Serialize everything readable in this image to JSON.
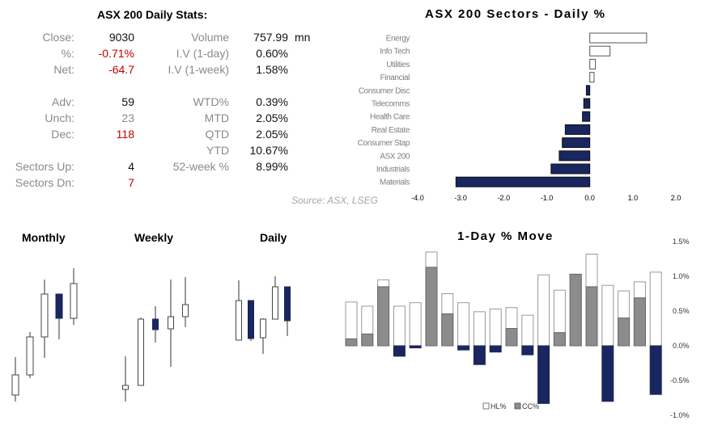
{
  "stats": {
    "title": "ASX 200 Daily Stats:",
    "left": [
      {
        "label": "Close:",
        "value": "9030",
        "color": "normal"
      },
      {
        "label": "%:",
        "value": "-0.71%",
        "color": "red"
      },
      {
        "label": "Net:",
        "value": "-64.7",
        "color": "red"
      },
      {
        "label": "Adv:",
        "value": "59",
        "color": "normal"
      },
      {
        "label": "Unch:",
        "value": "23",
        "color": "gray"
      },
      {
        "label": "Dec:",
        "value": "118",
        "color": "red"
      },
      {
        "label": "Sectors Up:",
        "value": "4",
        "color": "normal"
      },
      {
        "label": "Sectors Dn:",
        "value": "7",
        "color": "red"
      }
    ],
    "right": [
      {
        "label": "Volume",
        "value": "757.99",
        "unit": "mn"
      },
      {
        "label": "I.V (1-day)",
        "value": "0.60%"
      },
      {
        "label": "I.V (1-week)",
        "value": "1.58%"
      },
      {
        "label": "WTD%",
        "value": "0.39%"
      },
      {
        "label": "MTD",
        "value": "2.05%"
      },
      {
        "label": "QTD",
        "value": "2.05%"
      },
      {
        "label": "YTD",
        "value": "10.67%"
      },
      {
        "label": "52-week %",
        "value": "8.99%"
      }
    ],
    "source": "Source: ASX, LSEG"
  },
  "colors": {
    "negative": "#1a2660",
    "positive": "#ffffff",
    "cc_positive": "#8c8c8c",
    "red": "#c00000"
  },
  "chart_data": [
    {
      "type": "bar",
      "orientation": "horizontal",
      "title": "ASX 200 Sectors - Daily %",
      "categories": [
        "Energy",
        "Info Tech",
        "Utilities",
        "Financial",
        "Consumer Disc",
        "Telecomms",
        "Health Care",
        "Real Estate",
        "Consumer Stap",
        "ASX 200",
        "Industrials",
        "Materials"
      ],
      "values": [
        1.32,
        0.47,
        0.13,
        0.1,
        -0.08,
        -0.14,
        -0.17,
        -0.57,
        -0.64,
        -0.71,
        -0.9,
        -3.11
      ],
      "xlim": [
        -4,
        2
      ],
      "xticks": [
        "-4.0",
        "-3.0",
        "-2.0",
        "-1.0",
        "0.0",
        "1.0",
        "2.0"
      ],
      "grid": false
    },
    {
      "type": "candlestick",
      "title": "Monthly",
      "ohlc": [
        [
          11,
          58,
          3,
          36
        ],
        [
          36,
          89,
          32,
          83
        ],
        [
          83,
          154,
          57,
          136
        ],
        [
          136,
          136,
          80,
          106
        ],
        [
          106,
          168,
          98,
          149
        ]
      ]
    },
    {
      "type": "candlestick",
      "title": "Weekly",
      "ohlc": [
        [
          18,
          59,
          3,
          23
        ],
        [
          23,
          107,
          23,
          105
        ],
        [
          105,
          121,
          76,
          92
        ],
        [
          93,
          154,
          46,
          108
        ],
        [
          108,
          157,
          95,
          123
        ]
      ]
    },
    {
      "type": "candlestick",
      "title": "Daily",
      "ohlc": [
        [
          79,
          153,
          79,
          128
        ],
        [
          128,
          128,
          78,
          81
        ],
        [
          82,
          106,
          62,
          105
        ],
        [
          105,
          158,
          105,
          145
        ],
        [
          145,
          145,
          84,
          103
        ]
      ]
    },
    {
      "type": "bar",
      "title": "1-Day % Move",
      "series": [
        {
          "name": "HL%",
          "values": [
            0.63,
            0.57,
            0.95,
            0.57,
            0.62,
            1.35,
            0.75,
            0.62,
            0.49,
            0.53,
            0.55,
            0.44,
            1.02,
            0.8,
            1.03,
            1.32,
            0.87,
            0.79,
            0.92,
            1.06
          ]
        },
        {
          "name": "CC%",
          "values": [
            0.1,
            0.17,
            0.85,
            -0.15,
            -0.03,
            1.13,
            0.46,
            -0.06,
            -0.27,
            -0.09,
            0.25,
            -0.13,
            -0.83,
            0.19,
            1.03,
            0.85,
            -0.8,
            0.4,
            0.69,
            -0.7
          ]
        }
      ],
      "ylim": [
        -1.0,
        1.5
      ],
      "yticks": [
        "1.5%",
        "1.0%",
        "0.5%",
        "0.0%",
        "-0.5%",
        "-1.0%"
      ],
      "legend": "bottom",
      "grid": false
    }
  ]
}
